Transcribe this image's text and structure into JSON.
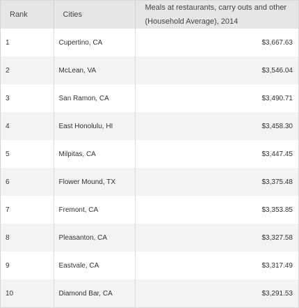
{
  "table": {
    "headers": {
      "rank": "Rank",
      "cities": "Cities",
      "meals": "Meals at restaurants, carry outs and other (Household Average), 2014"
    },
    "rows": [
      {
        "rank": "1",
        "city": "Cupertino, CA",
        "value": "$3,667.63"
      },
      {
        "rank": "2",
        "city": "McLean, VA",
        "value": "$3,546.04"
      },
      {
        "rank": "3",
        "city": "San Ramon, CA",
        "value": "$3,490.71"
      },
      {
        "rank": "4",
        "city": "East Honolulu, HI",
        "value": "$3,458.30"
      },
      {
        "rank": "5",
        "city": "Milpitas, CA",
        "value": "$3,447.45"
      },
      {
        "rank": "6",
        "city": "Flower Mound, TX",
        "value": "$3,375.48"
      },
      {
        "rank": "7",
        "city": "Fremont, CA",
        "value": "$3,353.85"
      },
      {
        "rank": "8",
        "city": "Pleasanton, CA",
        "value": "$3,327.58"
      },
      {
        "rank": "9",
        "city": "Eastvale, CA",
        "value": "$3,317.49"
      },
      {
        "rank": "10",
        "city": "Diamond Bar, CA",
        "value": "$3,291.53"
      }
    ]
  }
}
